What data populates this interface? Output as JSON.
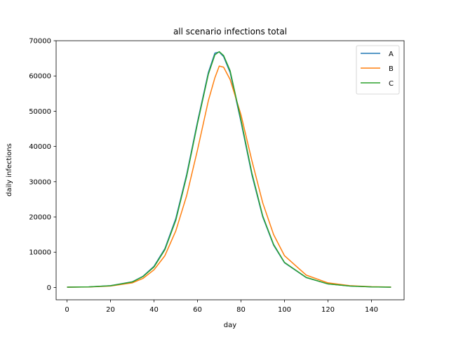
{
  "chart_data": {
    "type": "line",
    "title": "all scenario infections total",
    "xlabel": "day",
    "ylabel": "daily infections",
    "xlim": [
      -5,
      155
    ],
    "ylim": [
      -3500,
      70000
    ],
    "xticks": [
      0,
      20,
      40,
      60,
      80,
      100,
      120,
      140
    ],
    "yticks": [
      0,
      10000,
      20000,
      30000,
      40000,
      50000,
      60000,
      70000
    ],
    "grid": false,
    "legend_position": "top-right",
    "series": [
      {
        "name": "A",
        "color": "#1f77b4",
        "x": [
          0,
          10,
          20,
          30,
          35,
          40,
          45,
          50,
          55,
          60,
          65,
          68,
          70,
          72,
          75,
          80,
          85,
          90,
          95,
          100,
          110,
          120,
          130,
          140,
          149
        ],
        "y": [
          80,
          150,
          500,
          1600,
          3200,
          6000,
          11000,
          19500,
          32000,
          47000,
          61000,
          66500,
          66800,
          65500,
          61000,
          47000,
          32000,
          20000,
          12000,
          7000,
          2800,
          1000,
          400,
          150,
          80
        ]
      },
      {
        "name": "B",
        "color": "#ff7f0e",
        "x": [
          0,
          10,
          20,
          30,
          35,
          40,
          45,
          50,
          55,
          60,
          65,
          68,
          70,
          72,
          75,
          80,
          85,
          90,
          95,
          100,
          110,
          120,
          130,
          140,
          149
        ],
        "y": [
          80,
          130,
          400,
          1300,
          2600,
          5000,
          9000,
          16000,
          26000,
          39000,
          53000,
          59500,
          62800,
          62500,
          59000,
          49000,
          36000,
          24000,
          15000,
          9000,
          3500,
          1300,
          500,
          200,
          100
        ]
      },
      {
        "name": "C",
        "color": "#2ca02c",
        "x": [
          0,
          10,
          20,
          30,
          35,
          40,
          45,
          50,
          55,
          60,
          65,
          68,
          70,
          72,
          75,
          80,
          85,
          90,
          95,
          100,
          110,
          120,
          130,
          140,
          149
        ],
        "y": [
          80,
          150,
          480,
          1550,
          3100,
          5800,
          10700,
          19000,
          31500,
          46500,
          60500,
          66000,
          66900,
          65800,
          61500,
          47500,
          32500,
          20300,
          12200,
          7100,
          2850,
          1000,
          400,
          150,
          80
        ]
      }
    ]
  }
}
